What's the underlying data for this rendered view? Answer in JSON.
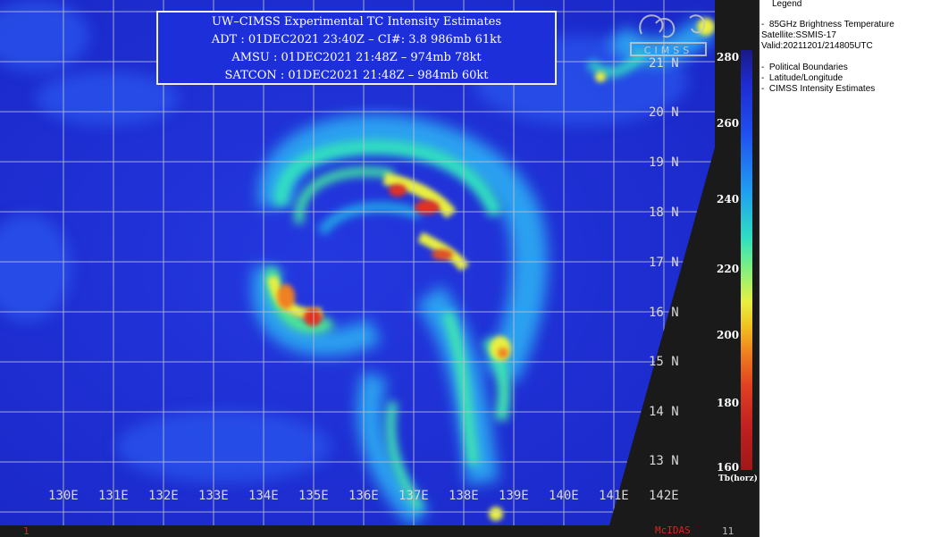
{
  "title_box": {
    "line1": "UW–CIMSS Experimental TC Intensity Estimates",
    "line2": "ADT : 01DEC2021 23:40Z –  CI#: 3.8   986mb   61kt",
    "line3": "AMSU : 01DEC2021 21:48Z  –  974mb   78kt",
    "line4": "SATCON : 01DEC2021 21:48Z  –  984mb   60kt"
  },
  "latitudes": [
    "21 N",
    "20 N",
    "19 N",
    "18 N",
    "17 N",
    "16 N",
    "15 N",
    "14 N",
    "13 N"
  ],
  "longitudes": [
    "130E",
    "131E",
    "132E",
    "133E",
    "134E",
    "135E",
    "136E",
    "137E",
    "138E",
    "139E",
    "140E",
    "141E",
    "142E"
  ],
  "colorbar": {
    "ticks": [
      "280",
      "260",
      "240",
      "220",
      "200",
      "180",
      "160"
    ],
    "unit": "Tb(horz)"
  },
  "legend": {
    "header": "Legend",
    "product": "85GHz Brightness Temperature",
    "satellite": "Satellite:SSMIS-17",
    "valid": "Valid:20211201/214805UTC",
    "overlays": [
      "Political Boundaries",
      "Latitude/Longitude",
      "CIMSS Intensity Estimates"
    ]
  },
  "logo_text": "CIMSS",
  "footer": {
    "frame": "1",
    "software": "McIDAS",
    "corner": "11"
  },
  "colors": {
    "background_cold": "#1e2bd0",
    "warm": "#e8f040",
    "hot": "#e03020",
    "grid": "#c8c8c8"
  }
}
